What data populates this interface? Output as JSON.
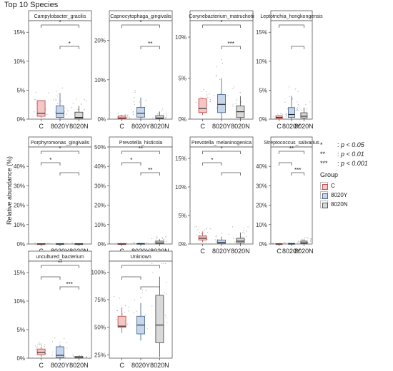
{
  "title": "Top 10 Species",
  "ylabel": "Relative abundance (%)",
  "groups": [
    "C",
    "8020Y",
    "8020N"
  ],
  "legend_title": "Group",
  "group_colors": {
    "C": "#f4c6c6",
    "8020Y": "#c6d6ec",
    "8020N": "#d9d9d9"
  },
  "significance_legend": [
    {
      "symbol": "*",
      "label": "p < 0.05"
    },
    {
      "symbol": "**",
      "label": "p < 0.01"
    },
    {
      "symbol": "***",
      "label": "p < 0.001"
    }
  ],
  "chart_data": [
    {
      "type": "box",
      "title": "Campylobacter_gracilis",
      "ylim": [
        0,
        17
      ],
      "yticks": [
        0,
        5,
        10,
        15
      ],
      "ytick_labels": [
        "0%",
        "5%",
        "10%",
        "15%"
      ],
      "boxes": [
        {
          "group": "C",
          "whisker_low": 0.2,
          "q1": 0.5,
          "median": 1.0,
          "q3": 3.2,
          "whisker_high": 3.2
        },
        {
          "group": "8020Y",
          "whisker_low": 0.0,
          "q1": 0.3,
          "median": 1.0,
          "q3": 2.3,
          "whisker_high": 4.5
        },
        {
          "group": "8020N",
          "whisker_low": 0.0,
          "q1": 0.1,
          "median": 0.3,
          "q3": 1.2,
          "whisker_high": 2.3
        }
      ],
      "comparisons": [
        {
          "from": "C",
          "to": "8020N",
          "label": "*"
        },
        {
          "from": "8020Y",
          "to": "8020N",
          "label": "*"
        }
      ]
    },
    {
      "type": "box",
      "title": "Capnocytophaga_gingivalis",
      "ylim": [
        0,
        25
      ],
      "yticks": [
        0,
        10,
        20
      ],
      "ytick_labels": [
        "0%",
        "10%",
        "20%"
      ],
      "boxes": [
        {
          "group": "C",
          "whisker_low": 0.0,
          "q1": 0.1,
          "median": 0.3,
          "q3": 0.8,
          "whisker_high": 1.0
        },
        {
          "group": "8020Y",
          "whisker_low": 0.0,
          "q1": 0.5,
          "median": 1.5,
          "q3": 3.0,
          "whisker_high": 5.5
        },
        {
          "group": "8020N",
          "whisker_low": 0.0,
          "q1": 0.1,
          "median": 0.3,
          "q3": 0.9,
          "whisker_high": 1.8
        }
      ],
      "comparisons": [
        {
          "from": "C",
          "to": "8020N",
          "label": "*"
        },
        {
          "from": "8020Y",
          "to": "8020N",
          "label": "**"
        }
      ]
    },
    {
      "type": "box",
      "title": "Corynebacterium_matruchotii",
      "ylim": [
        0,
        12
      ],
      "yticks": [
        0,
        5,
        10
      ],
      "ytick_labels": [
        "0%",
        "5%",
        "10%"
      ],
      "boxes": [
        {
          "group": "C",
          "whisker_low": 0.5,
          "q1": 0.8,
          "median": 1.3,
          "q3": 2.5,
          "whisker_high": 2.6
        },
        {
          "group": "8020Y",
          "whisker_low": 0.0,
          "q1": 0.8,
          "median": 1.8,
          "q3": 3.0,
          "whisker_high": 5.0
        },
        {
          "group": "8020N",
          "whisker_low": 0.0,
          "q1": 0.2,
          "median": 0.9,
          "q3": 1.6,
          "whisker_high": 2.8
        }
      ],
      "comparisons": [
        {
          "from": "C",
          "to": "8020N",
          "label": "*"
        },
        {
          "from": "8020Y",
          "to": "8020N",
          "label": "***"
        }
      ]
    },
    {
      "type": "box",
      "title": "Leptotrichia_hongkongensis",
      "ylim": [
        0,
        17
      ],
      "yticks": [
        0,
        5,
        10,
        15
      ],
      "ytick_labels": [
        "0%",
        "5%",
        "10%",
        "15%"
      ],
      "boxes": [
        {
          "group": "C",
          "whisker_low": 0.0,
          "q1": 0.1,
          "median": 0.3,
          "q3": 0.6,
          "whisker_high": 0.7
        },
        {
          "group": "8020Y",
          "whisker_low": 0.0,
          "q1": 0.3,
          "median": 0.8,
          "q3": 2.0,
          "whisker_high": 4.0
        },
        {
          "group": "8020N",
          "whisker_low": 0.0,
          "q1": 0.2,
          "median": 0.5,
          "q3": 1.1,
          "whisker_high": 2.0
        }
      ],
      "comparisons": [
        {
          "from": "C",
          "to": "8020N",
          "label": ""
        },
        {
          "from": "8020Y",
          "to": "8020N",
          "label": ""
        }
      ]
    },
    {
      "type": "box",
      "title": "Porphyromonas_gingivalis",
      "ylim": [
        0,
        50
      ],
      "yticks": [
        0,
        10,
        20,
        30,
        40
      ],
      "ytick_labels": [
        "0%",
        "10%",
        "20%",
        "30%",
        "40%"
      ],
      "boxes": [
        {
          "group": "C",
          "whisker_low": 0.0,
          "q1": 0.0,
          "median": 0.0,
          "q3": 0.2,
          "whisker_high": 0.3
        },
        {
          "group": "8020Y",
          "whisker_low": 0.0,
          "q1": 0.0,
          "median": 0.0,
          "q3": 0.2,
          "whisker_high": 0.3
        },
        {
          "group": "8020N",
          "whisker_low": 0.0,
          "q1": 0.0,
          "median": 0.0,
          "q3": 0.2,
          "whisker_high": 0.3
        }
      ],
      "comparisons": [
        {
          "from": "C",
          "to": "8020Y",
          "label": "*"
        },
        {
          "from": "8020Y",
          "to": "8020N",
          "label": ""
        },
        {
          "from": "C",
          "to": "8020N",
          "label": "*"
        }
      ]
    },
    {
      "type": "box",
      "title": "Prevotella_histicola",
      "ylim": [
        0,
        50
      ],
      "yticks": [
        0,
        10,
        20,
        30,
        40,
        50
      ],
      "ytick_labels": [
        "0%",
        "10%",
        "20%",
        "30%",
        "40%",
        "50%"
      ],
      "boxes": [
        {
          "group": "C",
          "whisker_low": 0.0,
          "q1": 0.0,
          "median": 0.0,
          "q3": 0.2,
          "whisker_high": 0.3
        },
        {
          "group": "8020Y",
          "whisker_low": 0.0,
          "q1": 0.0,
          "median": 0.1,
          "q3": 0.3,
          "whisker_high": 0.5
        },
        {
          "group": "8020N",
          "whisker_low": 0.0,
          "q1": 0.1,
          "median": 0.5,
          "q3": 1.5,
          "whisker_high": 2.5
        }
      ],
      "comparisons": [
        {
          "from": "C",
          "to": "8020Y",
          "label": "*"
        },
        {
          "from": "8020Y",
          "to": "8020N",
          "label": "**"
        },
        {
          "from": "C",
          "to": "8020N",
          "label": "**"
        }
      ]
    },
    {
      "type": "box",
      "title": "Prevotella_melaninogenica",
      "ylim": [
        0,
        17
      ],
      "yticks": [
        0,
        5,
        10,
        15
      ],
      "ytick_labels": [
        "0%",
        "5%",
        "10%",
        "15%"
      ],
      "boxes": [
        {
          "group": "C",
          "whisker_low": 0.3,
          "q1": 0.7,
          "median": 1.0,
          "q3": 1.4,
          "whisker_high": 2.2
        },
        {
          "group": "8020Y",
          "whisker_low": 0.0,
          "q1": 0.1,
          "median": 0.3,
          "q3": 0.7,
          "whisker_high": 1.3
        },
        {
          "group": "8020N",
          "whisker_low": 0.0,
          "q1": 0.2,
          "median": 0.5,
          "q3": 1.0,
          "whisker_high": 2.0
        }
      ],
      "comparisons": [
        {
          "from": "C",
          "to": "8020Y",
          "label": "*"
        },
        {
          "from": "8020Y",
          "to": "8020N",
          "label": ""
        },
        {
          "from": "C",
          "to": "8020N",
          "label": "*"
        }
      ]
    },
    {
      "type": "box",
      "title": "Streptococcus_salivarius",
      "ylim": [
        0,
        50
      ],
      "yticks": [
        0,
        10,
        20,
        30,
        40
      ],
      "ytick_labels": [
        "0%",
        "10%",
        "20%",
        "30%",
        "40%"
      ],
      "boxes": [
        {
          "group": "C",
          "whisker_low": 0.0,
          "q1": 0.0,
          "median": 0.0,
          "q3": 0.2,
          "whisker_high": 0.3
        },
        {
          "group": "8020Y",
          "whisker_low": 0.0,
          "q1": 0.0,
          "median": 0.1,
          "q3": 0.3,
          "whisker_high": 0.5
        },
        {
          "group": "8020N",
          "whisker_low": 0.0,
          "q1": 0.2,
          "median": 0.6,
          "q3": 1.5,
          "whisker_high": 2.5
        }
      ],
      "comparisons": [
        {
          "from": "C",
          "to": "8020Y",
          "label": ""
        },
        {
          "from": "8020Y",
          "to": "8020N",
          "label": "***"
        },
        {
          "from": "C",
          "to": "8020N",
          "label": "**"
        }
      ]
    },
    {
      "type": "box",
      "title": "uncultured_bacterium",
      "ylim": [
        0,
        17
      ],
      "yticks": [
        0,
        5,
        10,
        15
      ],
      "ytick_labels": [
        "0%",
        "5%",
        "10%",
        "15%"
      ],
      "boxes": [
        {
          "group": "C",
          "whisker_low": 0.2,
          "q1": 0.6,
          "median": 1.0,
          "q3": 1.6,
          "whisker_high": 2.0
        },
        {
          "group": "8020Y",
          "whisker_low": 0.0,
          "q1": 0.1,
          "median": 0.5,
          "q3": 2.0,
          "whisker_high": 2.3
        },
        {
          "group": "8020N",
          "whisker_low": 0.0,
          "q1": 0.0,
          "median": 0.1,
          "q3": 0.3,
          "whisker_high": 0.4
        }
      ],
      "comparisons": [
        {
          "from": "C",
          "to": "8020Y",
          "label": ""
        },
        {
          "from": "8020Y",
          "to": "8020N",
          "label": "***"
        },
        {
          "from": "C",
          "to": "8020N",
          "label": "**"
        }
      ]
    },
    {
      "type": "box",
      "title": "Unknown",
      "ylim": [
        22,
        110
      ],
      "yticks": [
        25,
        50,
        75,
        100
      ],
      "ytick_labels": [
        "25%",
        "50%",
        "75%",
        "100%"
      ],
      "boxes": [
        {
          "group": "C",
          "whisker_low": 45,
          "q1": 50,
          "median": 51,
          "q3": 60,
          "whisker_high": 68
        },
        {
          "group": "8020Y",
          "whisker_low": 38,
          "q1": 44,
          "median": 52,
          "q3": 60,
          "whisker_high": 72
        },
        {
          "group": "8020N",
          "whisker_low": 23,
          "q1": 36,
          "median": 52,
          "q3": 79,
          "whisker_high": 96
        }
      ],
      "comparisons": [
        {
          "from": "C",
          "to": "8020Y",
          "label": ""
        },
        {
          "from": "8020Y",
          "to": "8020N",
          "label": ""
        },
        {
          "from": "C",
          "to": "8020N",
          "label": ""
        }
      ]
    }
  ]
}
